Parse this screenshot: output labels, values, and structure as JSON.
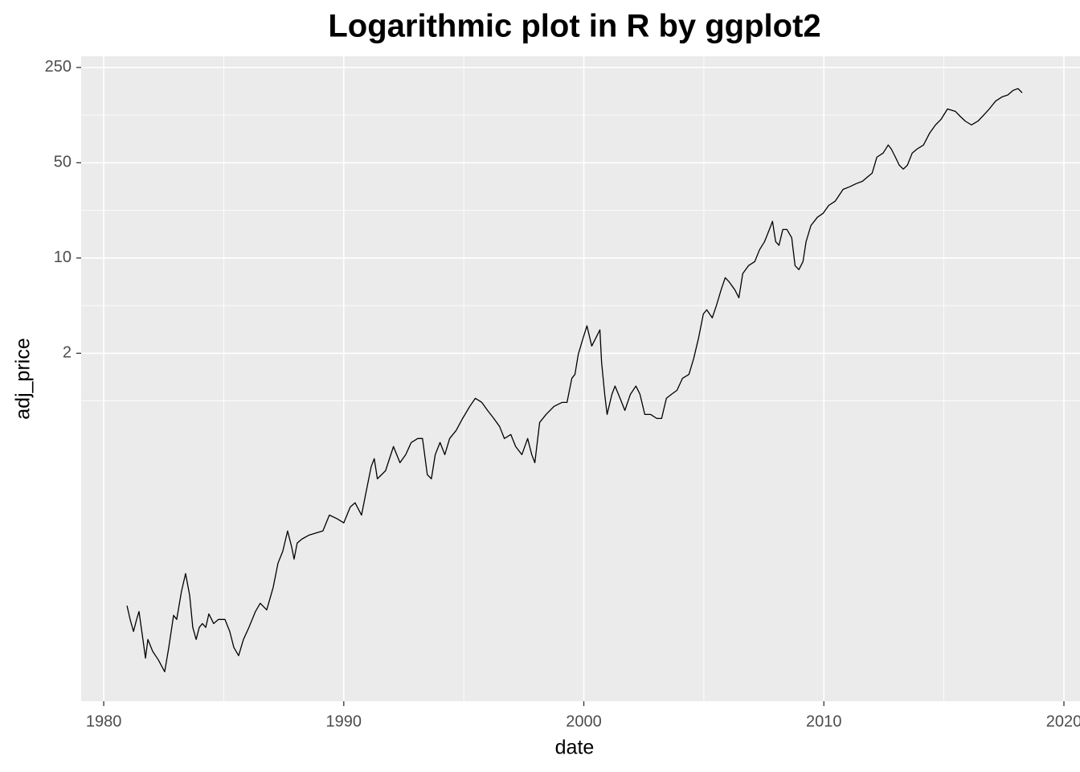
{
  "chart_data": {
    "type": "line",
    "title": "Logarithmic plot in R by ggplot2",
    "x_label": "date",
    "y_label": "adj_price",
    "log_y": true,
    "grid": true,
    "color": "#000000",
    "xlim": [
      1979.06,
      2020.67
    ],
    "xticks": [
      1980,
      1990,
      2000,
      2010,
      2020
    ],
    "ylim": [
      0.0056,
      302
    ],
    "yticks": [
      2,
      10,
      50,
      250
    ],
    "x": [
      1980.97,
      1981.1,
      1981.24,
      1981.37,
      1981.47,
      1981.61,
      1981.74,
      1981.84,
      1982.04,
      1982.27,
      1982.54,
      1982.71,
      1982.91,
      1983.04,
      1983.24,
      1983.41,
      1983.58,
      1983.71,
      1983.85,
      1983.98,
      1984.11,
      1984.25,
      1984.38,
      1984.58,
      1984.78,
      1985.05,
      1985.25,
      1985.42,
      1985.62,
      1985.82,
      1986.05,
      1986.32,
      1986.52,
      1986.79,
      1987.06,
      1987.26,
      1987.46,
      1987.66,
      1987.83,
      1987.93,
      1988.06,
      1988.26,
      1988.56,
      1988.9,
      1989.13,
      1989.4,
      1989.73,
      1990.0,
      1990.27,
      1990.47,
      1990.74,
      1990.94,
      1991.14,
      1991.27,
      1991.4,
      1991.74,
      1992.07,
      1992.34,
      1992.58,
      1992.81,
      1993.08,
      1993.28,
      1993.48,
      1993.65,
      1993.81,
      1994.01,
      1994.21,
      1994.41,
      1994.68,
      1994.95,
      1995.25,
      1995.48,
      1995.75,
      1995.99,
      1996.25,
      1996.49,
      1996.69,
      1996.96,
      1997.16,
      1997.42,
      1997.66,
      1997.83,
      1997.96,
      1998.16,
      1998.43,
      1998.76,
      1999.1,
      1999.3,
      1999.5,
      1999.63,
      1999.77,
      1999.97,
      2000.13,
      2000.33,
      2000.5,
      2000.67,
      2000.74,
      2000.87,
      2000.97,
      2001.17,
      2001.3,
      2001.51,
      2001.71,
      2001.94,
      2002.17,
      2002.34,
      2002.54,
      2002.78,
      2003.04,
      2003.24,
      2003.44,
      2003.65,
      2003.88,
      2004.11,
      2004.38,
      2004.58,
      2004.78,
      2004.98,
      2005.12,
      2005.35,
      2005.52,
      2005.72,
      2005.89,
      2006.05,
      2006.29,
      2006.46,
      2006.62,
      2006.86,
      2007.12,
      2007.32,
      2007.53,
      2007.73,
      2007.86,
      2007.99,
      2008.13,
      2008.29,
      2008.46,
      2008.66,
      2008.8,
      2008.96,
      2009.13,
      2009.26,
      2009.46,
      2009.73,
      2009.97,
      2010.2,
      2010.47,
      2010.8,
      2011.07,
      2011.34,
      2011.61,
      2011.81,
      2012.01,
      2012.21,
      2012.47,
      2012.68,
      2012.81,
      2012.98,
      2013.14,
      2013.31,
      2013.48,
      2013.68,
      2013.88,
      2014.15,
      2014.41,
      2014.65,
      2014.88,
      2015.15,
      2015.48,
      2015.69,
      2015.89,
      2016.15,
      2016.42,
      2016.66,
      2016.89,
      2017.16,
      2017.42,
      2017.66,
      2017.89,
      2018.09,
      2018.26
    ],
    "values": [
      0.0281,
      0.0223,
      0.0182,
      0.0223,
      0.0255,
      0.017,
      0.0116,
      0.0159,
      0.013,
      0.0113,
      0.00922,
      0.0139,
      0.0239,
      0.0223,
      0.0359,
      0.0484,
      0.0335,
      0.0195,
      0.0159,
      0.0195,
      0.0208,
      0.0195,
      0.0245,
      0.0208,
      0.0223,
      0.0223,
      0.0182,
      0.0139,
      0.0121,
      0.0159,
      0.0195,
      0.0255,
      0.0293,
      0.0262,
      0.0384,
      0.0577,
      0.0707,
      0.0994,
      0.0757,
      0.0618,
      0.0811,
      0.0868,
      0.0928,
      0.0967,
      0.0994,
      0.13,
      0.122,
      0.114,
      0.149,
      0.16,
      0.13,
      0.196,
      0.294,
      0.337,
      0.24,
      0.275,
      0.414,
      0.315,
      0.361,
      0.443,
      0.474,
      0.474,
      0.257,
      0.24,
      0.361,
      0.443,
      0.361,
      0.474,
      0.543,
      0.665,
      0.816,
      0.935,
      0.873,
      0.762,
      0.665,
      0.581,
      0.474,
      0.507,
      0.414,
      0.361,
      0.474,
      0.361,
      0.315,
      0.622,
      0.712,
      0.816,
      0.873,
      0.873,
      1.31,
      1.4,
      1.97,
      2.59,
      3.18,
      2.26,
      2.59,
      2.97,
      1.72,
      1.0,
      0.712,
      1.0,
      1.15,
      0.935,
      0.762,
      1.0,
      1.15,
      1.0,
      0.712,
      0.712,
      0.665,
      0.665,
      0.935,
      1.0,
      1.07,
      1.31,
      1.4,
      1.84,
      2.59,
      3.89,
      4.17,
      3.64,
      4.46,
      5.85,
      7.17,
      6.7,
      5.85,
      5.11,
      7.68,
      8.79,
      9.41,
      11.5,
      13.2,
      16.2,
      18.6,
      13.2,
      12.4,
      16.2,
      16.2,
      14.1,
      8.79,
      8.22,
      9.41,
      13.2,
      17.3,
      19.9,
      21.3,
      24.3,
      26.1,
      31.9,
      33.3,
      35.1,
      36.6,
      39.2,
      41.9,
      55.0,
      58.9,
      67.5,
      63.0,
      55.0,
      48.0,
      44.9,
      48.0,
      58.9,
      63.0,
      67.5,
      82.7,
      94.7,
      104,
      124,
      119,
      109,
      101,
      94.7,
      101,
      112,
      124,
      142,
      152,
      157,
      170,
      175,
      163
    ]
  }
}
